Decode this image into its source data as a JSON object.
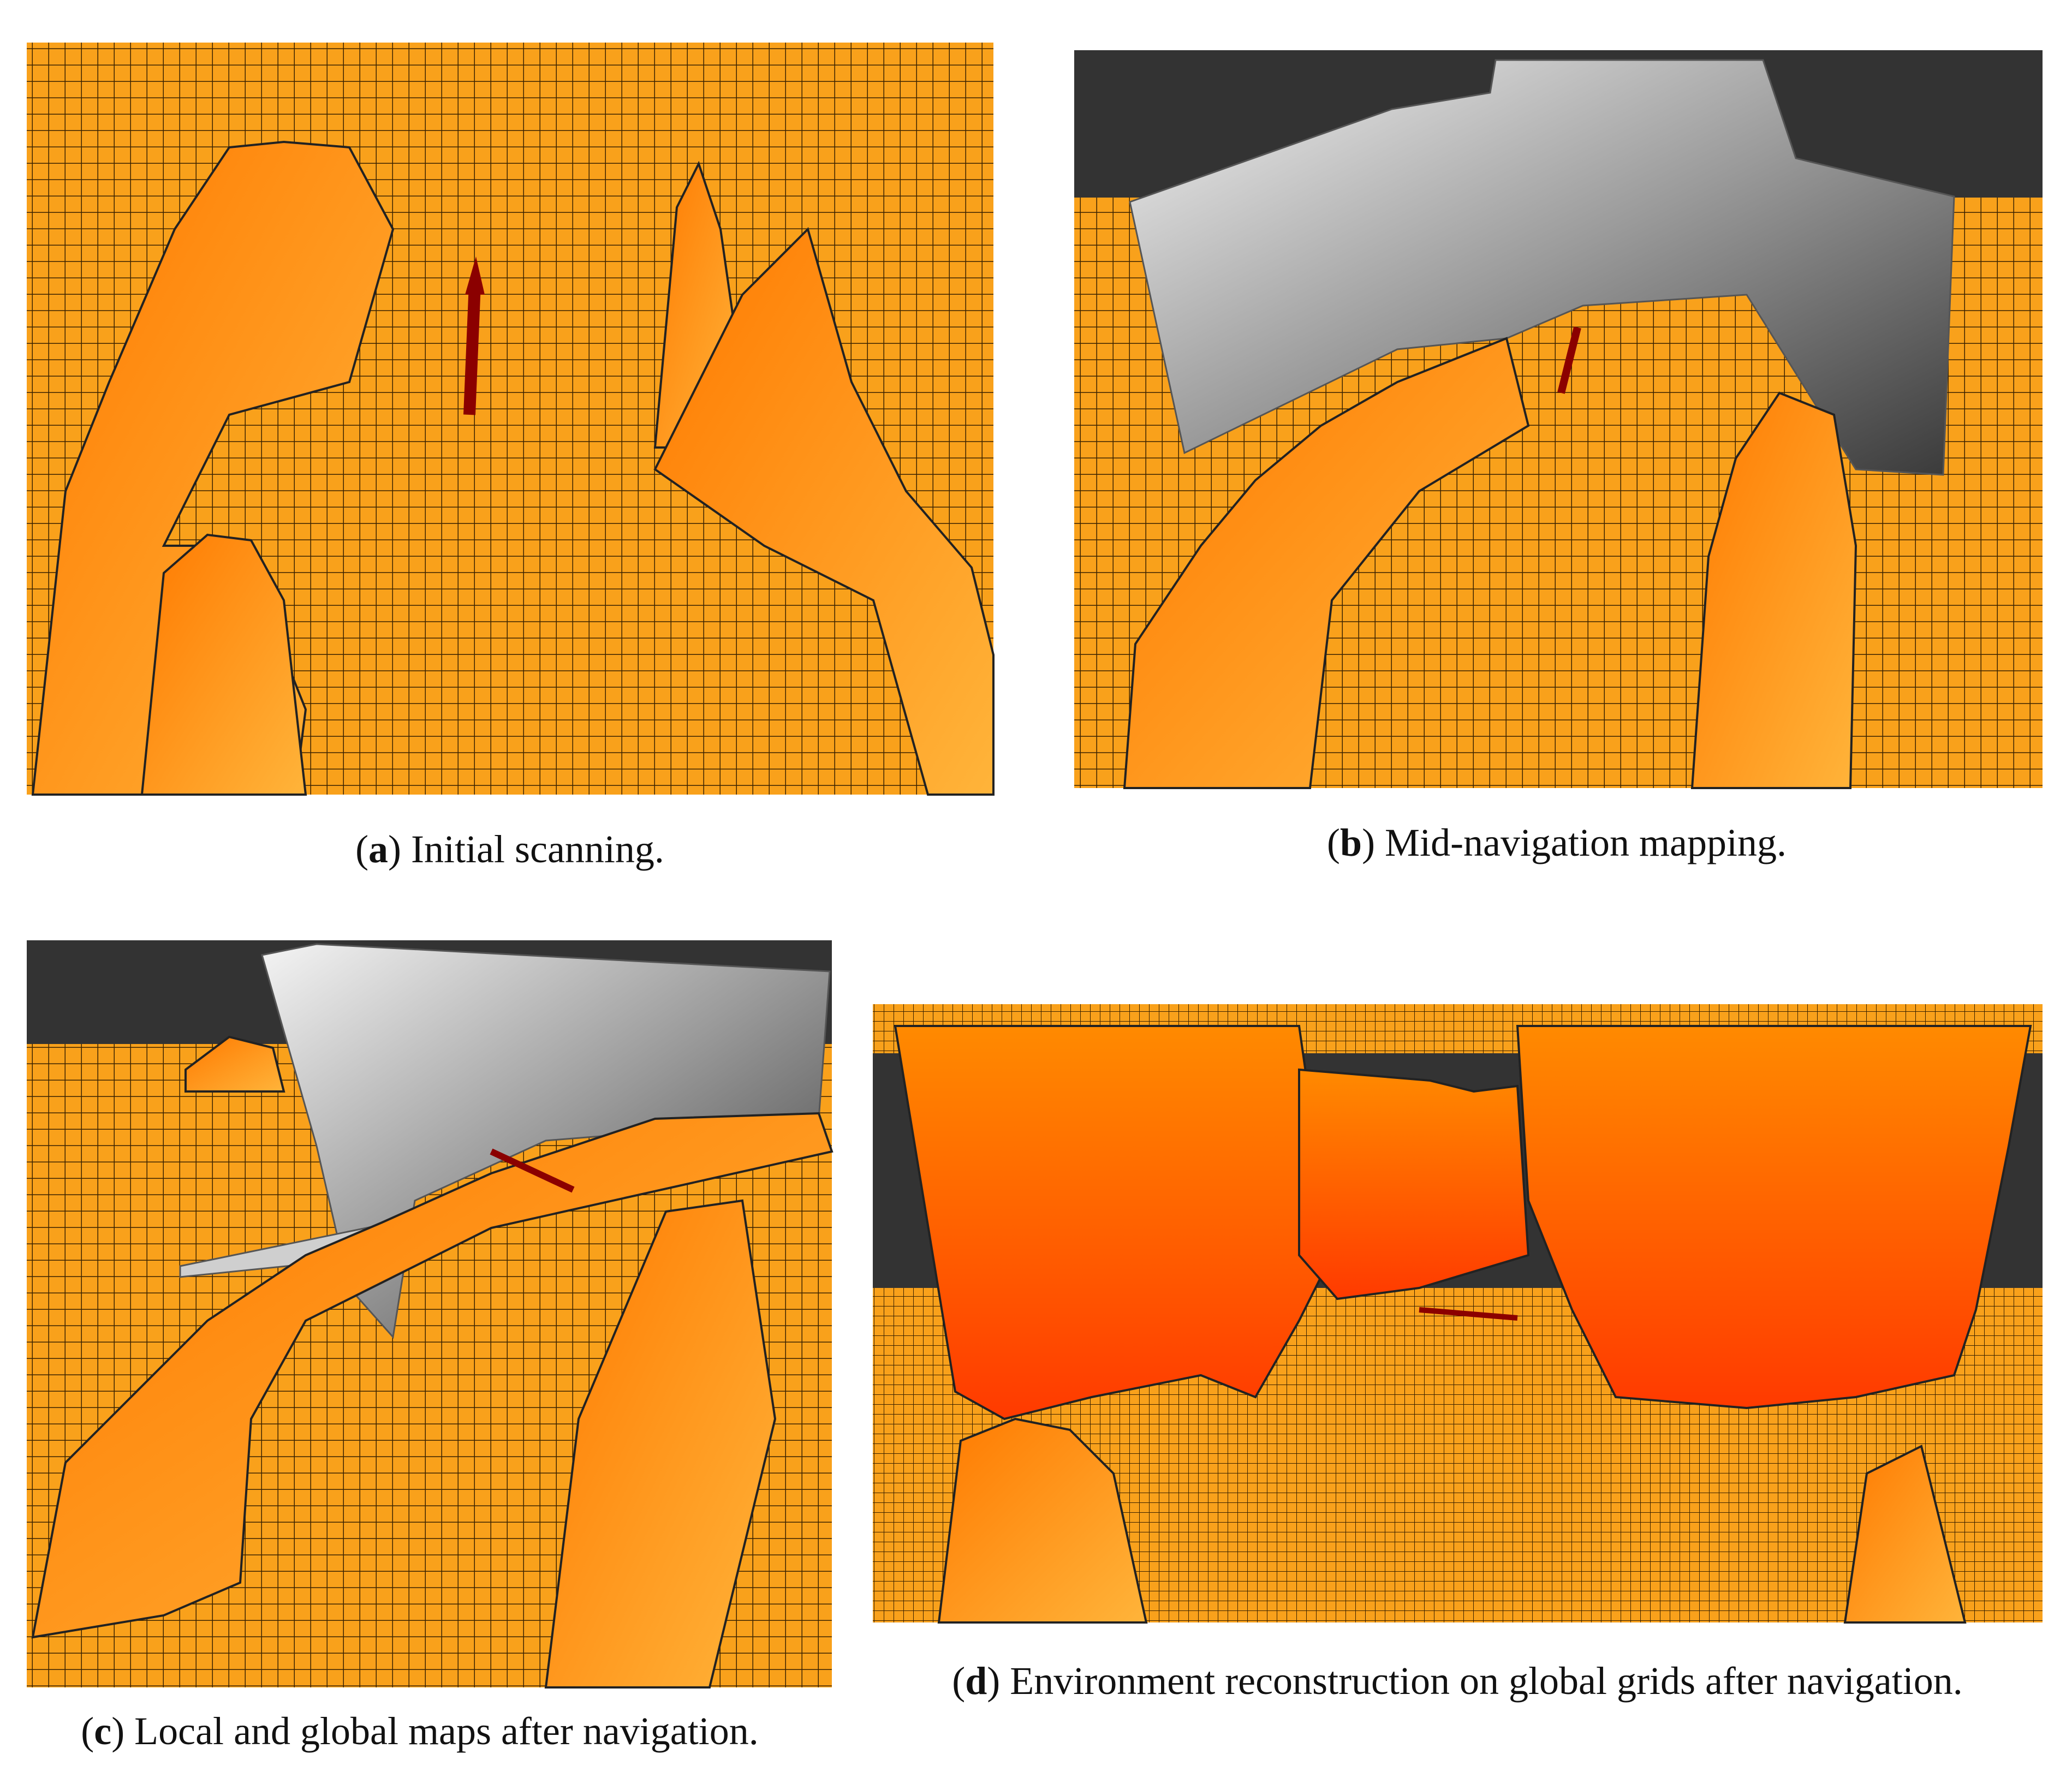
{
  "panels": [
    {
      "caption": [
        "(",
        "a",
        ") Initial scanning."
      ]
    },
    {
      "caption": [
        "(",
        "b",
        ") Mid-navigation mapping."
      ]
    },
    {
      "caption": [
        "(",
        "c",
        ") Local and global maps after navigation."
      ]
    },
    {
      "caption": [
        "(",
        "d",
        ") Environment reconstruction on global grids after navigation."
      ]
    }
  ]
}
